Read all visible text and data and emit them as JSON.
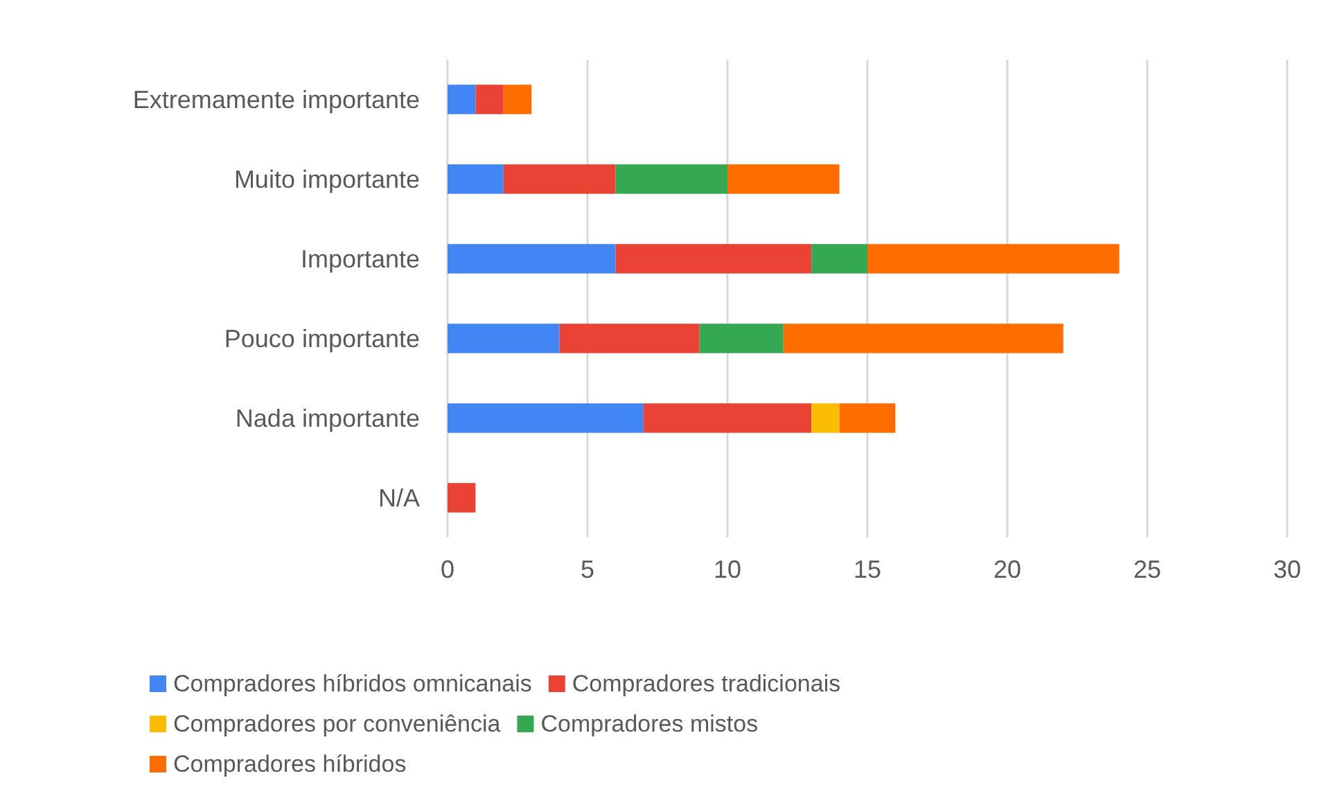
{
  "chart_data": {
    "type": "bar",
    "orientation": "horizontal",
    "stacked": true,
    "categories": [
      "Extremamente importante",
      "Muito importante",
      "Importante",
      "Pouco importante",
      "Nada importante",
      "N/A"
    ],
    "series": [
      {
        "name": "Compradores híbridos omnicanais",
        "color": "#4285f4",
        "values": [
          1,
          2,
          6,
          4,
          7,
          0
        ]
      },
      {
        "name": "Compradores tradicionais",
        "color": "#ea4335",
        "values": [
          1,
          4,
          7,
          5,
          6,
          1
        ]
      },
      {
        "name": "Compradores por conveniência",
        "color": "#fbbc04",
        "values": [
          0,
          0,
          0,
          0,
          1,
          0
        ]
      },
      {
        "name": "Compradores mistos",
        "color": "#34a853",
        "values": [
          0,
          4,
          2,
          3,
          0,
          0
        ]
      },
      {
        "name": "Compradores híbridos",
        "color": "#ff6d01",
        "values": [
          1,
          4,
          9,
          10,
          2,
          0
        ]
      }
    ],
    "xlim": [
      0,
      30
    ],
    "xticks": [
      0,
      5,
      10,
      15,
      20,
      25,
      30
    ],
    "grid": "x",
    "legend": "bottom"
  }
}
